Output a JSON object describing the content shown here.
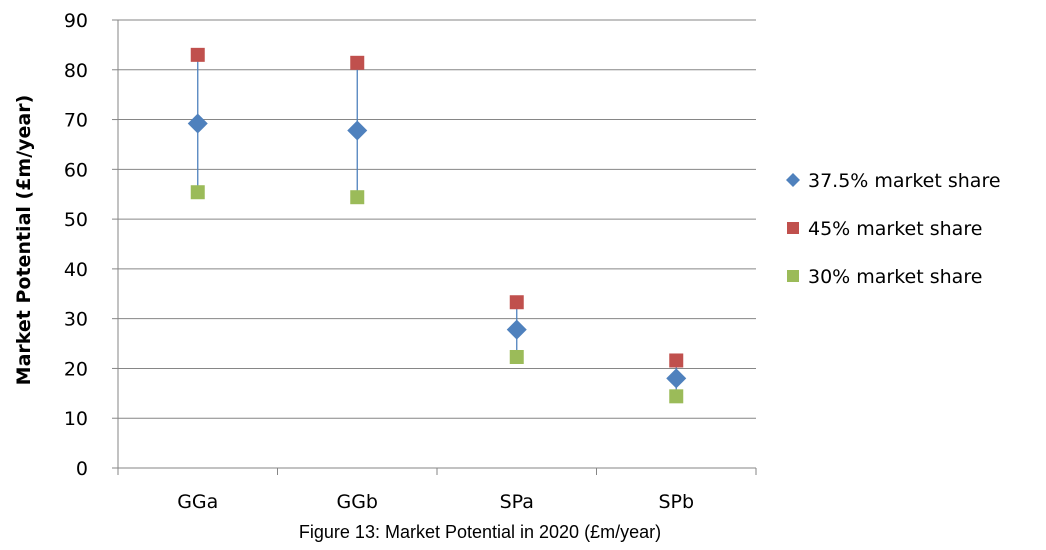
{
  "caption": "Figure 13: Market Potential in 2020 (£m/year)",
  "chart_data": {
    "type": "scatter",
    "title": "",
    "xlabel": "",
    "ylabel": "Market Potential (£m/year)",
    "categories": [
      "GGa",
      "GGb",
      "SPa",
      "SPb"
    ],
    "ylim": [
      0,
      90
    ],
    "yticks": [
      0,
      10,
      20,
      30,
      40,
      50,
      60,
      70,
      80,
      90
    ],
    "grid": "horizontal",
    "legend_position": "right",
    "error_bars": "vertical lines linking the 30% and 45% values",
    "series": [
      {
        "name": "37.5% market share",
        "marker": "diamond",
        "color": "#4F81BD",
        "values": [
          69.2,
          67.8,
          27.8,
          18.0
        ]
      },
      {
        "name": "45% market share",
        "marker": "square",
        "color": "#C0504D",
        "values": [
          83.0,
          81.4,
          33.3,
          21.6
        ]
      },
      {
        "name": "30% market share",
        "marker": "square",
        "color": "#9BBB59",
        "values": [
          55.4,
          54.4,
          22.3,
          14.4
        ]
      }
    ]
  }
}
